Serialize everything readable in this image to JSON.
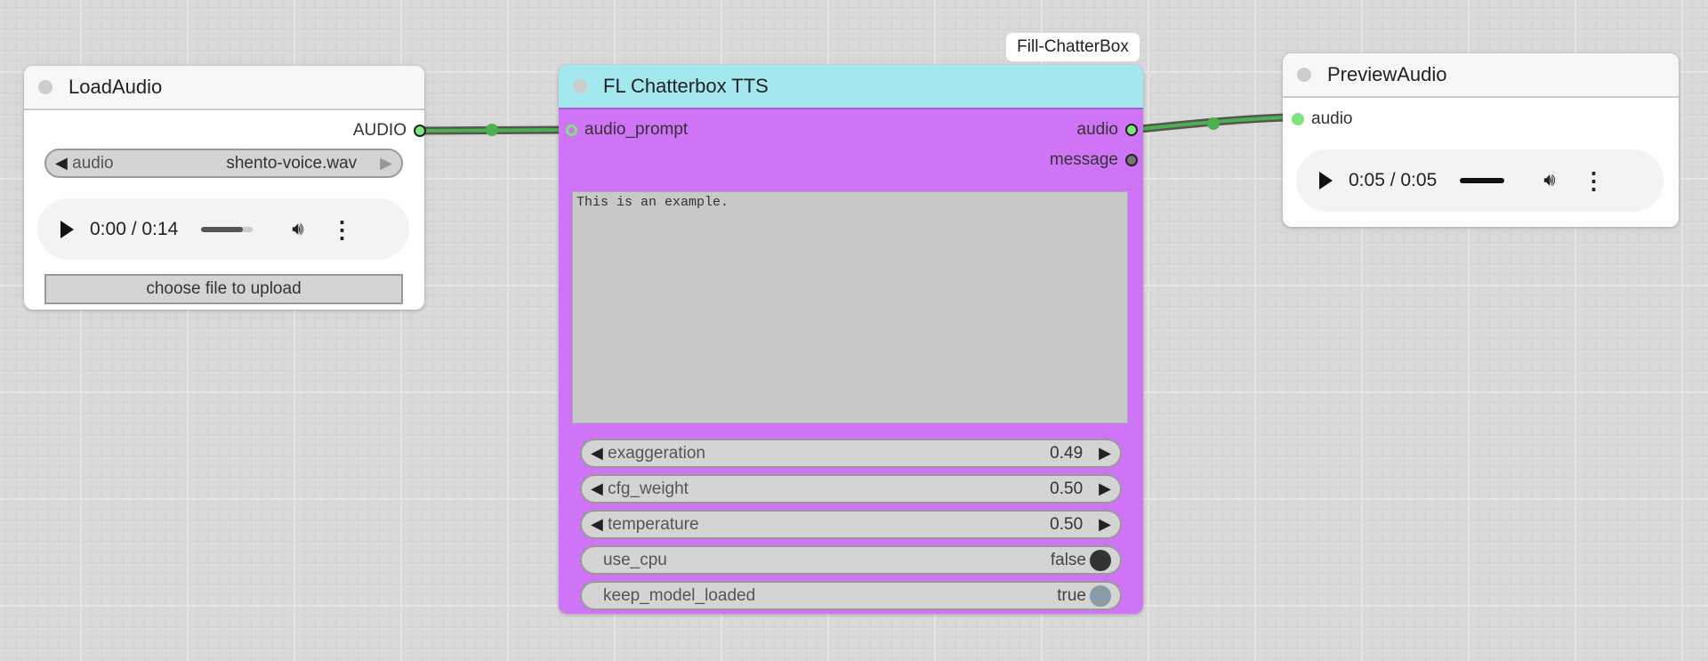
{
  "load_audio": {
    "title": "LoadAudio",
    "output": "AUDIO",
    "combo_label": "audio",
    "combo_value": "shento-voice.wav",
    "player": {
      "time": "0:00 / 0:14",
      "volume_level": 0.8
    },
    "upload_label": "choose file to upload"
  },
  "chatterbox": {
    "badge": "Fill-ChatterBox",
    "title": "FL Chatterbox TTS",
    "input": "audio_prompt",
    "outputs": [
      "audio",
      "message"
    ],
    "text": "This is an example.",
    "widgets": [
      {
        "label": "exaggeration",
        "value": "0.49"
      },
      {
        "label": "cfg_weight",
        "value": "0.50"
      },
      {
        "label": "temperature",
        "value": "0.50"
      }
    ],
    "toggles": [
      {
        "label": "use_cpu",
        "value": "false"
      },
      {
        "label": "keep_model_loaded",
        "value": "true"
      }
    ],
    "colors": {
      "header": "#a3e8ef",
      "body": "#cf73f7"
    }
  },
  "preview_audio": {
    "title": "PreviewAudio",
    "input": "audio",
    "player": {
      "time": "0:05 / 0:05",
      "progress": 1.0
    }
  }
}
